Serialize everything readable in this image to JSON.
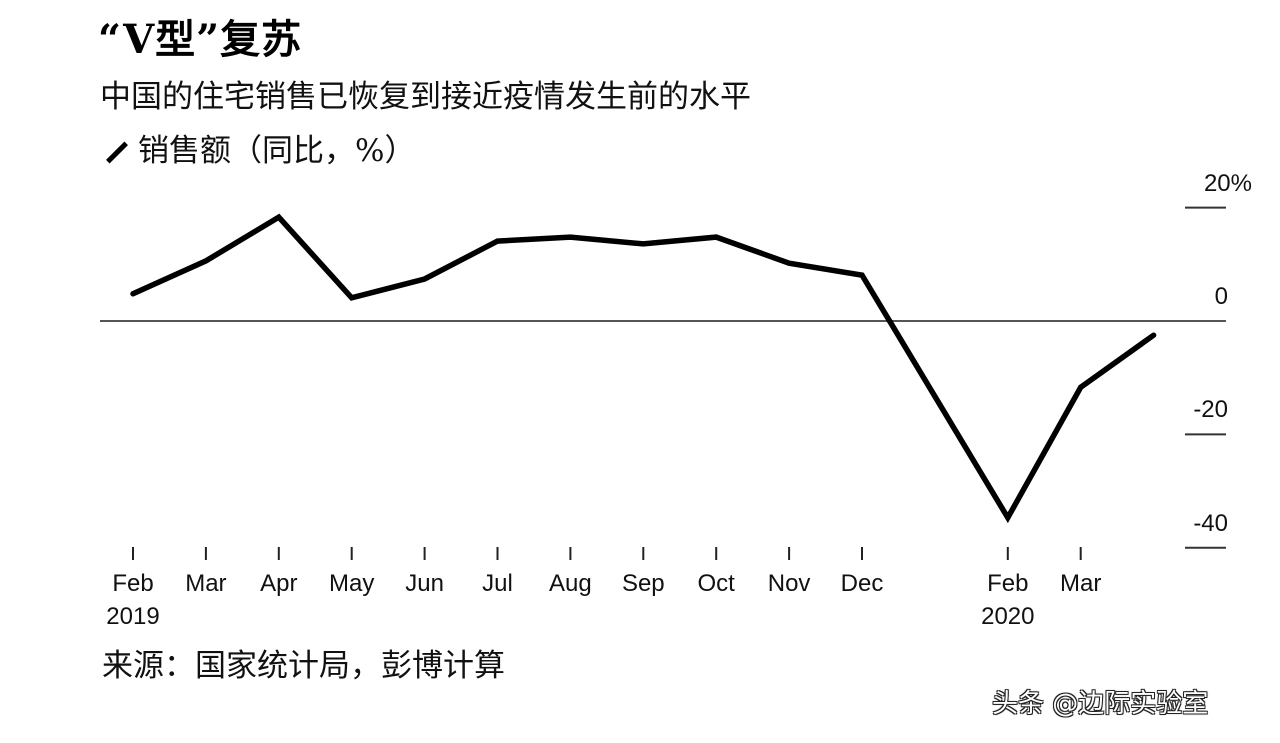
{
  "header": {
    "title": "“V型”复苏",
    "subtitle": "中国的住宅销售已恢复到接近疫情发生前的水平",
    "legend_label": "销售额（同比，%）",
    "legend_icon": "line-swatch-icon"
  },
  "footer": {
    "source": "来源：国家统计局，彭博计算",
    "watermark": "头条 @边际实验室"
  },
  "colors": {
    "line": "#000000",
    "zero_line": "#555555",
    "background": "#ffffff",
    "text": "#111111"
  },
  "y_axis": {
    "ticks": [
      {
        "value": 20,
        "label": "20%"
      },
      {
        "value": 0,
        "label": "0"
      },
      {
        "value": -20,
        "label": "-20"
      },
      {
        "value": -40,
        "label": "-40"
      }
    ],
    "position": "right"
  },
  "x_axis": {
    "ticks": [
      {
        "label": "Feb",
        "sub": "2019"
      },
      {
        "label": "Mar",
        "sub": ""
      },
      {
        "label": "Apr",
        "sub": ""
      },
      {
        "label": "May",
        "sub": ""
      },
      {
        "label": "Jun",
        "sub": ""
      },
      {
        "label": "Jul",
        "sub": ""
      },
      {
        "label": "Aug",
        "sub": ""
      },
      {
        "label": "Sep",
        "sub": ""
      },
      {
        "label": "Oct",
        "sub": ""
      },
      {
        "label": "Nov",
        "sub": ""
      },
      {
        "label": "Dec",
        "sub": ""
      },
      {
        "label": "Feb",
        "sub": "2020"
      },
      {
        "label": "Mar",
        "sub": ""
      }
    ]
  },
  "chart_data": {
    "type": "line",
    "title": "“V型”复苏",
    "subtitle": "中国的住宅销售已恢复到接近疫情发生前的水平",
    "xlabel": "",
    "ylabel": "销售额（同比，%）",
    "x": [
      "2019-02",
      "2019-03",
      "2019-04",
      "2019-05",
      "2019-06",
      "2019-07",
      "2019-08",
      "2019-09",
      "2019-10",
      "2019-11",
      "2019-12",
      "2020-02",
      "2020-03",
      "2020-04"
    ],
    "series": [
      {
        "name": "销售额（同比，%）",
        "values": [
          4.8,
          10.6,
          18.3,
          4.1,
          7.4,
          14.1,
          14.8,
          13.6,
          14.8,
          10.2,
          8.1,
          -34.7,
          -11.7,
          -2.5
        ]
      }
    ],
    "x_tick_labels": [
      "Feb 2019",
      "Mar",
      "Apr",
      "May",
      "Jun",
      "Jul",
      "Aug",
      "Sep",
      "Oct",
      "Nov",
      "Dec",
      "Feb 2020",
      "Mar"
    ],
    "y_tick_labels": [
      "20%",
      "0",
      "-20",
      "-40"
    ],
    "ylim": [
      -40,
      20
    ],
    "grid": false,
    "zero_line": true,
    "y_axis_position": "right",
    "legend_position": "top-left",
    "annotations": [
      "来源：国家统计局，彭博计算"
    ]
  }
}
